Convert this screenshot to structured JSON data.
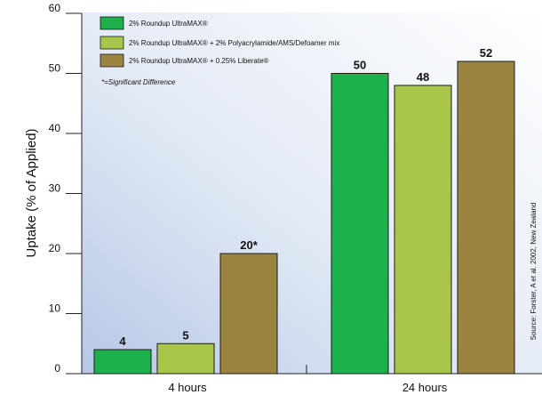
{
  "chart_data": {
    "type": "bar",
    "categories": [
      "4 hours",
      "24 hours"
    ],
    "series": [
      {
        "name": "2% Roundup UltraMAX®",
        "values": [
          4,
          50
        ],
        "labels": [
          "4",
          "50"
        ],
        "color": "#1db14b"
      },
      {
        "name": "2% Roundup UltraMAX® + 2% Polyacrylamide/AMS/Defoamer mix",
        "values": [
          5,
          48
        ],
        "labels": [
          "5",
          "48"
        ],
        "color": "#a8c64a"
      },
      {
        "name": "2% Roundup UltraMAX® + 0.25% Liberate®",
        "values": [
          20,
          52
        ],
        "labels": [
          "20*",
          "52"
        ],
        "color": "#9a8440"
      }
    ],
    "ylabel": "Uptake (% of Applied)",
    "xlabel": "",
    "ylim": [
      0,
      60
    ],
    "yticks": [
      "0",
      "10",
      "20",
      "30",
      "40",
      "50",
      "60"
    ],
    "note": "*=Significant Difference",
    "source": "Source: Forster, A et al. 2002, New Zealand",
    "legend_position": "top-left",
    "grid": false,
    "background": "gradient blue-to-white"
  }
}
